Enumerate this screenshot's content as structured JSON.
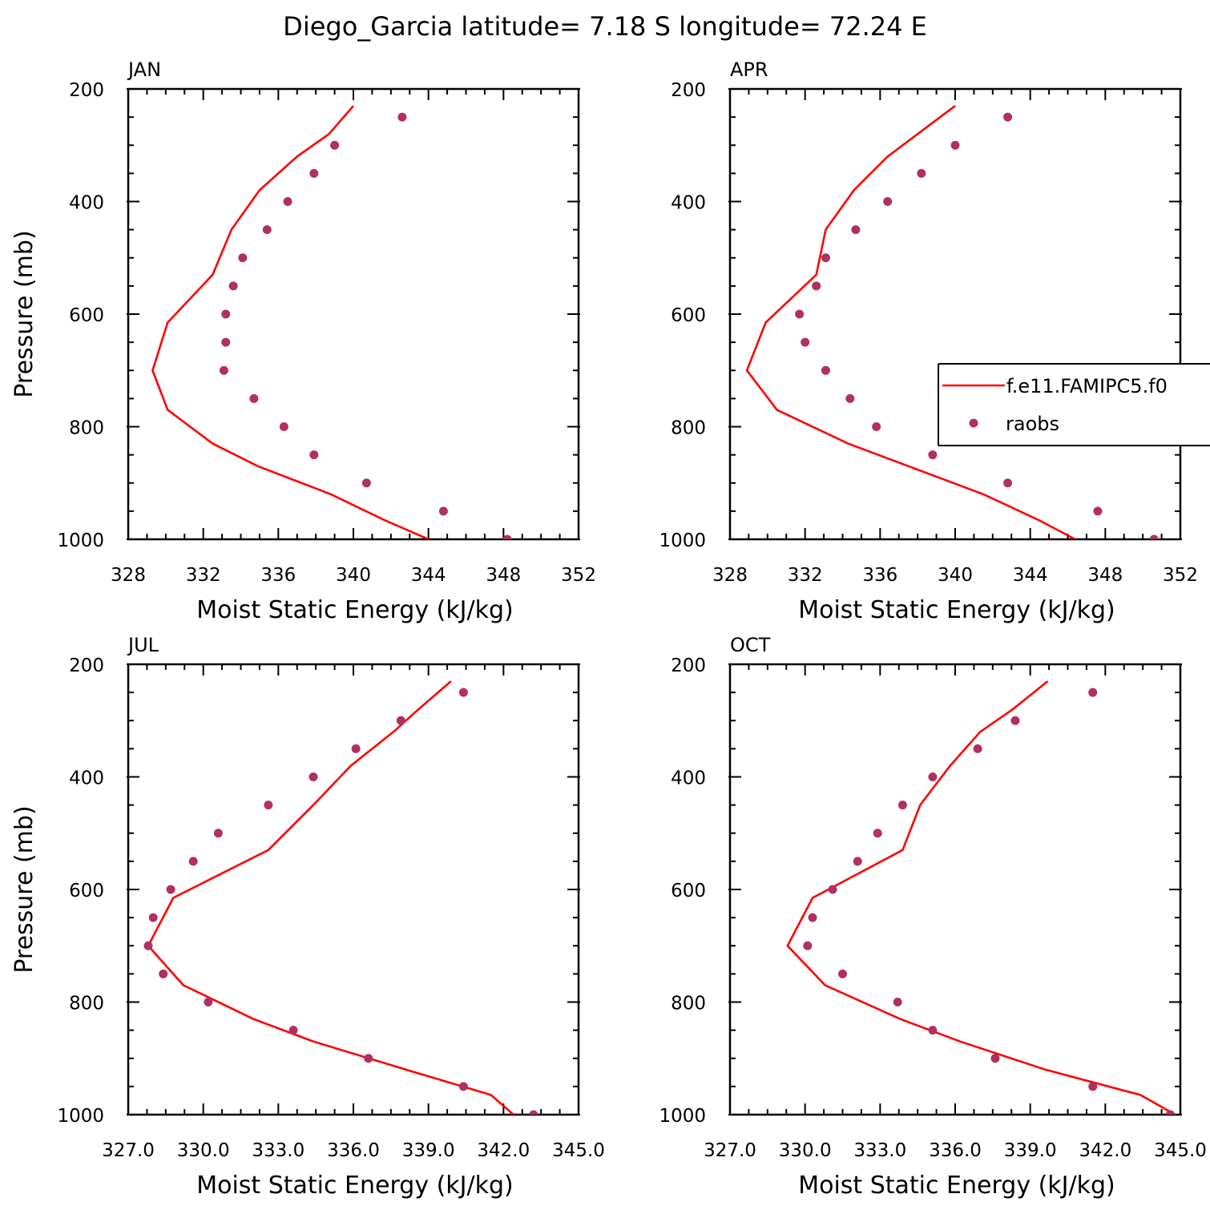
{
  "figure_title": "Diego_Garcia  latitude= 7.18 S longitude= 72.24 E",
  "colors": {
    "model_line": "#ff0000",
    "raobs_marker": "#b03060"
  },
  "legend": {
    "panel": 1,
    "model_label": "f.e11.FAMIPC5.f0",
    "obs_label": "raobs"
  },
  "chart_data": [
    {
      "type": "line",
      "panel_label": "JAN",
      "xlabel": "Moist Static Energy (kJ/kg)",
      "ylabel": "Pressure (mb)",
      "xlim": [
        328,
        352
      ],
      "ylim": [
        1000,
        200
      ],
      "x_ticks": [
        328,
        332,
        336,
        340,
        344,
        348,
        352
      ],
      "x_tick_labels": [
        "328",
        "332",
        "336",
        "340",
        "344",
        "348",
        "352"
      ],
      "y_ticks": [
        200,
        400,
        600,
        800,
        1000
      ],
      "y_tick_labels": [
        "200",
        "400",
        "600",
        "800",
        "1000"
      ],
      "series": [
        {
          "name": "f.e11.FAMIPC5.f0",
          "kind": "line",
          "pressure": [
            230,
            280,
            320,
            380,
            450,
            530,
            615,
            700,
            770,
            830,
            870,
            920,
            965,
            1000
          ],
          "mse": [
            340.0,
            338.7,
            337.0,
            335.0,
            333.5,
            332.5,
            330.1,
            329.3,
            330.1,
            332.5,
            334.9,
            338.8,
            341.6,
            344.0
          ]
        },
        {
          "name": "raobs",
          "kind": "scatter",
          "pressure": [
            250,
            300,
            350,
            400,
            450,
            500,
            550,
            600,
            650,
            700,
            750,
            800,
            850,
            900,
            950,
            1000
          ],
          "mse": [
            342.6,
            339.0,
            337.9,
            336.5,
            335.4,
            334.1,
            333.6,
            333.2,
            333.2,
            333.1,
            334.7,
            336.3,
            337.9,
            340.7,
            344.8,
            348.2
          ]
        }
      ]
    },
    {
      "type": "line",
      "panel_label": "APR",
      "xlabel": "Moist Static Energy (kJ/kg)",
      "ylabel": "",
      "xlim": [
        328,
        352
      ],
      "ylim": [
        1000,
        200
      ],
      "x_ticks": [
        328,
        332,
        336,
        340,
        344,
        348,
        352
      ],
      "x_tick_labels": [
        "328",
        "332",
        "336",
        "340",
        "344",
        "348",
        "352"
      ],
      "y_ticks": [
        200,
        400,
        600,
        800,
        1000
      ],
      "y_tick_labels": [
        "200",
        "400",
        "600",
        "800",
        "1000"
      ],
      "series": [
        {
          "name": "f.e11.FAMIPC5.f0",
          "kind": "line",
          "pressure": [
            230,
            280,
            320,
            380,
            450,
            530,
            615,
            700,
            770,
            830,
            870,
            920,
            965,
            1000
          ],
          "mse": [
            340.0,
            338.0,
            336.4,
            334.6,
            333.1,
            332.6,
            329.9,
            328.9,
            330.5,
            334.3,
            337.5,
            341.5,
            344.4,
            346.4
          ]
        },
        {
          "name": "raobs",
          "kind": "scatter",
          "pressure": [
            250,
            300,
            350,
            400,
            450,
            500,
            550,
            600,
            650,
            700,
            750,
            800,
            850,
            900,
            950,
            1000
          ],
          "mse": [
            342.8,
            340.0,
            338.2,
            336.4,
            334.7,
            333.1,
            332.6,
            331.7,
            332.0,
            333.1,
            334.4,
            335.8,
            338.8,
            342.8,
            347.6,
            350.6
          ]
        }
      ]
    },
    {
      "type": "line",
      "panel_label": "JUL",
      "xlabel": "Moist Static Energy (kJ/kg)",
      "ylabel": "Pressure (mb)",
      "xlim": [
        327,
        345
      ],
      "ylim": [
        1000,
        200
      ],
      "x_ticks": [
        327,
        330,
        333,
        336,
        339,
        342,
        345
      ],
      "x_tick_labels": [
        "327.0",
        "330.0",
        "333.0",
        "336.0",
        "339.0",
        "342.0",
        "345.0"
      ],
      "y_ticks": [
        200,
        400,
        600,
        800,
        1000
      ],
      "y_tick_labels": [
        "200",
        "400",
        "600",
        "800",
        "1000"
      ],
      "series": [
        {
          "name": "f.e11.FAMIPC5.f0",
          "kind": "line",
          "pressure": [
            230,
            280,
            320,
            380,
            450,
            530,
            615,
            700,
            770,
            830,
            870,
            920,
            965,
            1000
          ],
          "mse": [
            339.9,
            338.6,
            337.6,
            335.9,
            334.4,
            332.6,
            328.8,
            327.8,
            329.2,
            332.0,
            334.4,
            338.1,
            341.5,
            342.4
          ]
        },
        {
          "name": "raobs",
          "kind": "scatter",
          "pressure": [
            250,
            300,
            350,
            400,
            450,
            500,
            550,
            600,
            650,
            700,
            750,
            800,
            850,
            900,
            950,
            1000
          ],
          "mse": [
            340.4,
            337.9,
            336.1,
            334.4,
            332.6,
            330.6,
            329.6,
            328.7,
            328.0,
            327.8,
            328.4,
            330.2,
            333.6,
            336.6,
            340.4,
            343.2
          ]
        }
      ]
    },
    {
      "type": "line",
      "panel_label": "OCT",
      "xlabel": "Moist Static Energy (kJ/kg)",
      "ylabel": "",
      "xlim": [
        327,
        345
      ],
      "ylim": [
        1000,
        200
      ],
      "x_ticks": [
        327,
        330,
        333,
        336,
        339,
        342,
        345
      ],
      "x_tick_labels": [
        "327.0",
        "330.0",
        "333.0",
        "336.0",
        "339.0",
        "342.0",
        "345.0"
      ],
      "y_ticks": [
        200,
        400,
        600,
        800,
        1000
      ],
      "y_tick_labels": [
        "200",
        "400",
        "600",
        "800",
        "1000"
      ],
      "series": [
        {
          "name": "f.e11.FAMIPC5.f0",
          "kind": "line",
          "pressure": [
            230,
            280,
            320,
            380,
            450,
            530,
            615,
            700,
            770,
            830,
            870,
            920,
            965,
            1000
          ],
          "mse": [
            339.7,
            338.3,
            337.0,
            335.8,
            334.6,
            333.9,
            330.3,
            329.3,
            330.8,
            333.8,
            336.2,
            339.6,
            343.4,
            344.8
          ]
        },
        {
          "name": "raobs",
          "kind": "scatter",
          "pressure": [
            250,
            300,
            350,
            400,
            450,
            500,
            550,
            600,
            650,
            700,
            750,
            800,
            850,
            900,
            950,
            1000
          ],
          "mse": [
            341.5,
            338.4,
            336.9,
            335.1,
            333.9,
            332.9,
            332.1,
            331.1,
            330.3,
            330.1,
            331.5,
            333.7,
            335.1,
            337.6,
            341.5,
            344.6
          ]
        }
      ]
    }
  ]
}
